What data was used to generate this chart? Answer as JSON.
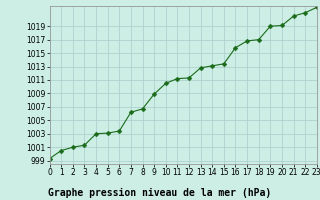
{
  "x": [
    0,
    1,
    2,
    3,
    4,
    5,
    6,
    7,
    8,
    9,
    10,
    11,
    12,
    13,
    14,
    15,
    16,
    17,
    18,
    19,
    20,
    21,
    22,
    23
  ],
  "y": [
    999.3,
    1000.5,
    1001.0,
    1001.3,
    1003.0,
    1003.1,
    1003.4,
    1006.2,
    1006.7,
    1008.9,
    1010.5,
    1011.2,
    1011.3,
    1012.8,
    1013.1,
    1013.4,
    1015.8,
    1016.8,
    1017.0,
    1019.0,
    1019.1,
    1020.5,
    1021.0,
    1021.8
  ],
  "xlim": [
    0,
    23
  ],
  "ylim": [
    998.5,
    1022.0
  ],
  "yticks": [
    999,
    1001,
    1003,
    1005,
    1007,
    1009,
    1011,
    1013,
    1015,
    1017,
    1019
  ],
  "xticks": [
    0,
    1,
    2,
    3,
    4,
    5,
    6,
    7,
    8,
    9,
    10,
    11,
    12,
    13,
    14,
    15,
    16,
    17,
    18,
    19,
    20,
    21,
    22,
    23
  ],
  "xlabel": "Graphe pression niveau de la mer (hPa)",
  "line_color": "#1a6b1a",
  "marker_color": "#1a6b1a",
  "bg_color": "#cceee4",
  "grid_color": "#aacccc",
  "border_color": "#999999",
  "xlabel_fontsize": 7,
  "tick_fontsize": 5.5,
  "line_width": 0.8,
  "marker_size": 2.5
}
